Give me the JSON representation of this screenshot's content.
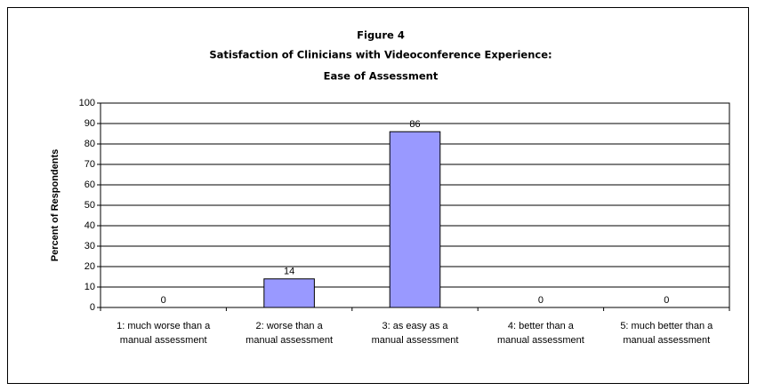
{
  "chart_data": {
    "type": "bar",
    "title": [
      "Figure 4",
      "Satisfaction of Clinicians with Videoconference Experience:",
      "Ease of Assessment"
    ],
    "y_label": "Percent of Respondents",
    "categories": [
      [
        "1: much worse than a",
        "manual assessment"
      ],
      [
        "2: worse than a",
        "manual assessment"
      ],
      [
        "3: as easy as a",
        "manual assessment"
      ],
      [
        "4: better than a",
        "manual assessment"
      ],
      [
        "5: much better than a",
        "manual assessment"
      ]
    ],
    "values": [
      0,
      14,
      86,
      0,
      0
    ],
    "color": "#9999ff",
    "ylim": [
      0,
      100
    ],
    "yticks": [
      0,
      10,
      20,
      30,
      40,
      50,
      60,
      70,
      80,
      90,
      100
    ],
    "grid": true
  }
}
